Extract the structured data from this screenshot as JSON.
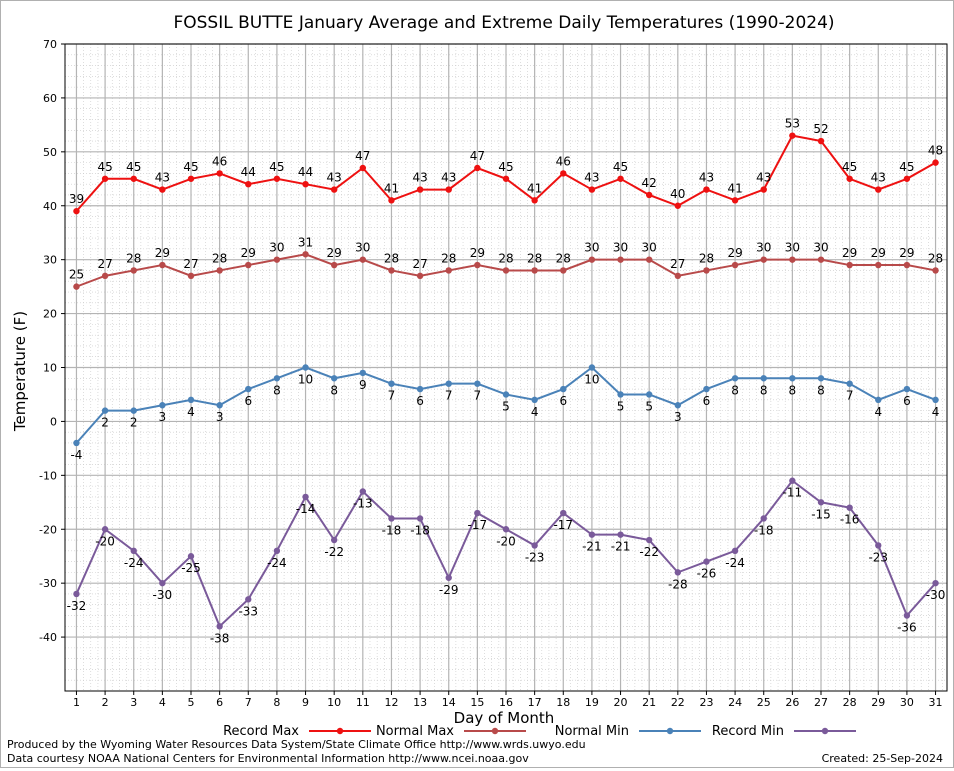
{
  "chart_data": {
    "type": "line",
    "title": "FOSSIL BUTTE January Average and Extreme Daily Temperatures (1990-2024)",
    "xlabel": "Day of Month",
    "ylabel": "Temperature (F)",
    "ylim": [
      -50,
      70
    ],
    "yticks": [
      -40,
      -30,
      -20,
      -10,
      0,
      10,
      20,
      30,
      40,
      50,
      60,
      70
    ],
    "x": [
      1,
      2,
      3,
      4,
      5,
      6,
      7,
      8,
      9,
      10,
      11,
      12,
      13,
      14,
      15,
      16,
      17,
      18,
      19,
      20,
      21,
      22,
      23,
      24,
      25,
      26,
      27,
      28,
      29,
      30,
      31
    ],
    "grid": true,
    "legend_position": "bottom",
    "series": [
      {
        "name": "Record Max",
        "color": "#ee1111",
        "values": [
          39,
          45,
          45,
          43,
          45,
          46,
          44,
          45,
          44,
          43,
          47,
          41,
          43,
          43,
          47,
          45,
          41,
          46,
          43,
          45,
          42,
          40,
          43,
          41,
          43,
          53,
          52,
          45,
          43,
          45,
          48
        ]
      },
      {
        "name": "Normal Max",
        "color": "#b84a4a",
        "values": [
          25,
          27,
          28,
          29,
          27,
          28,
          29,
          30,
          31,
          29,
          30,
          28,
          27,
          28,
          29,
          28,
          28,
          28,
          30,
          30,
          30,
          27,
          28,
          29,
          30,
          30,
          30,
          29,
          29,
          29,
          28
        ]
      },
      {
        "name": "Normal Min",
        "color": "#4a82b8",
        "values": [
          -4,
          2,
          2,
          3,
          4,
          3,
          6,
          8,
          10,
          8,
          9,
          7,
          6,
          7,
          7,
          5,
          4,
          6,
          10,
          5,
          5,
          3,
          6,
          8,
          8,
          8,
          8,
          7,
          4,
          6,
          4
        ]
      },
      {
        "name": "Record Min",
        "color": "#7a5a9a",
        "values": [
          -32,
          -20,
          -24,
          -30,
          -25,
          -38,
          -33,
          -24,
          -14,
          -22,
          -13,
          -18,
          -18,
          -29,
          -17,
          -20,
          -23,
          -17,
          -21,
          -21,
          -22,
          -28,
          -26,
          -24,
          -18,
          -11,
          -15,
          -16,
          -23,
          -36,
          -30
        ]
      }
    ]
  },
  "credits": {
    "produced_by": "Produced by the Wyoming Water Resources Data System/State Climate Office http://www.wrds.uwyo.edu",
    "data_courtesy": "Data courtesy NOAA National Centers for Environmental Information http://www.ncei.noaa.gov",
    "created": "Created: 25-Sep-2024"
  }
}
